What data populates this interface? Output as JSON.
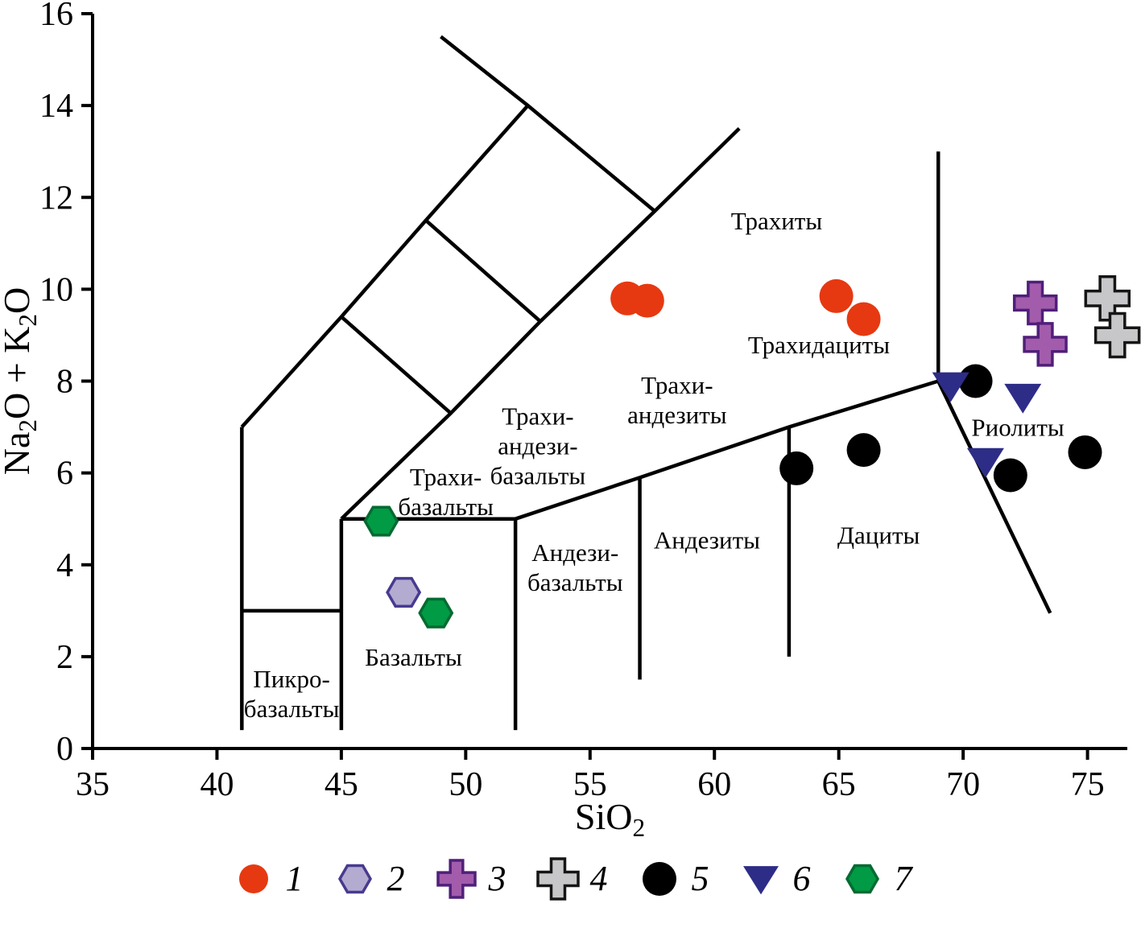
{
  "figure": {
    "background": "#ffffff"
  },
  "chart_data": {
    "type": "scatter",
    "title": "",
    "xlabel": "SiO2",
    "ylabel": "Na2O + K2O",
    "xlim": [
      35,
      76.6
    ],
    "ylim": [
      0,
      16
    ],
    "x_ticks": [
      35,
      40,
      45,
      50,
      55,
      60,
      65,
      70,
      75
    ],
    "y_ticks": [
      0,
      2,
      4,
      6,
      8,
      10,
      12,
      14,
      16
    ],
    "grid": false,
    "legend_position": "bottom",
    "boundary_lines": [
      [
        [
          41,
          0.4
        ],
        [
          41,
          7
        ]
      ],
      [
        [
          41,
          3
        ],
        [
          45,
          3
        ]
      ],
      [
        [
          45,
          0.4
        ],
        [
          45,
          5
        ]
      ],
      [
        [
          52,
          0.4
        ],
        [
          52,
          5
        ]
      ],
      [
        [
          57,
          1.5
        ],
        [
          57,
          5.9
        ]
      ],
      [
        [
          63,
          2.0
        ],
        [
          63,
          7
        ]
      ],
      [
        [
          45,
          5
        ],
        [
          52,
          5
        ]
      ],
      [
        [
          52,
          5
        ],
        [
          57,
          5.9
        ],
        [
          63,
          7
        ],
        [
          69,
          8
        ]
      ],
      [
        [
          69,
          8
        ],
        [
          69,
          13
        ]
      ],
      [
        [
          69,
          8
        ],
        [
          73.5,
          2.95
        ]
      ],
      [
        [
          41,
          7
        ],
        [
          45,
          9.4
        ],
        [
          48.4,
          11.5
        ],
        [
          52.5,
          14
        ]
      ],
      [
        [
          49.0,
          15.5
        ],
        [
          52.5,
          14
        ],
        [
          57.6,
          11.7
        ]
      ],
      [
        [
          45,
          5
        ],
        [
          49.4,
          7.3
        ],
        [
          53,
          9.3
        ],
        [
          57.6,
          11.7
        ],
        [
          61,
          13.5
        ]
      ],
      [
        [
          45,
          9.4
        ],
        [
          49.4,
          7.3
        ]
      ],
      [
        [
          48.4,
          11.5
        ],
        [
          53,
          9.3
        ]
      ]
    ],
    "field_labels": [
      {
        "lines": [
          "Пикро-",
          "базальты"
        ],
        "x": 43.0,
        "y": 1.2
      },
      {
        "lines": [
          "Базальты"
        ],
        "x": 47.9,
        "y": 2.0
      },
      {
        "lines": [
          "Трахи-",
          "базальты"
        ],
        "x": 49.2,
        "y": 5.6
      },
      {
        "lines": [
          "Трахи-",
          "андези-",
          "базальты"
        ],
        "x": 52.9,
        "y": 6.6
      },
      {
        "lines": [
          "Андези-",
          "базальты"
        ],
        "x": 54.4,
        "y": 3.95
      },
      {
        "lines": [
          "Андезиты"
        ],
        "x": 59.7,
        "y": 4.55
      },
      {
        "lines": [
          "Трахи-",
          "андезиты"
        ],
        "x": 58.5,
        "y": 7.6
      },
      {
        "lines": [
          "Трахиты"
        ],
        "x": 62.5,
        "y": 11.5
      },
      {
        "lines": [
          "Трахидациты"
        ],
        "x": 64.2,
        "y": 8.8
      },
      {
        "lines": [
          "Дациты"
        ],
        "x": 66.6,
        "y": 4.65
      },
      {
        "lines": [
          "Риолиты"
        ],
        "x": 72.2,
        "y": 7.0
      }
    ],
    "series": [
      {
        "name": "1",
        "marker": "circle",
        "size": 21,
        "fill": "#e63911",
        "stroke": "none",
        "points": [
          [
            56.5,
            9.8
          ],
          [
            57.3,
            9.75
          ],
          [
            64.9,
            9.85
          ],
          [
            66.0,
            9.35
          ]
        ]
      },
      {
        "name": "2",
        "marker": "hexagon",
        "size": 20,
        "fill": "#b4abd1",
        "stroke": "#473a8f",
        "points": [
          [
            47.5,
            3.4
          ]
        ]
      },
      {
        "name": "3",
        "marker": "cross",
        "size": 26,
        "fill": "#a25cab",
        "stroke": "#501f7a",
        "points": [
          [
            72.9,
            9.7
          ],
          [
            73.3,
            8.8
          ]
        ]
      },
      {
        "name": "4",
        "marker": "cross",
        "size": 27,
        "fill": "#c7c7c9",
        "stroke": "#151515",
        "points": [
          [
            75.8,
            9.8
          ],
          [
            76.2,
            9.0
          ]
        ]
      },
      {
        "name": "5",
        "marker": "circle",
        "size": 21,
        "fill": "#000000",
        "stroke": "none",
        "points": [
          [
            63.3,
            6.1
          ],
          [
            66.0,
            6.5
          ],
          [
            70.5,
            8.0
          ],
          [
            71.9,
            5.95
          ],
          [
            74.9,
            6.45
          ]
        ]
      },
      {
        "name": "6",
        "marker": "triangle-down",
        "size": 23,
        "fill": "#2d2d87",
        "stroke": "none",
        "points": [
          [
            69.5,
            7.9
          ],
          [
            72.4,
            7.65
          ],
          [
            70.9,
            6.25
          ]
        ]
      },
      {
        "name": "7",
        "marker": "hexagon",
        "size": 20,
        "fill": "#009b44",
        "stroke": "#056a32",
        "points": [
          [
            46.6,
            4.95
          ],
          [
            48.8,
            2.95
          ]
        ]
      }
    ],
    "legend": [
      {
        "label": "1",
        "marker": "circle",
        "size": 18,
        "fill": "#e63911",
        "stroke": "none"
      },
      {
        "label": "2",
        "marker": "hexagon",
        "size": 19,
        "fill": "#b4abd1",
        "stroke": "#473a8f"
      },
      {
        "label": "3",
        "marker": "cross",
        "size": 23,
        "fill": "#a25cab",
        "stroke": "#501f7a"
      },
      {
        "label": "4",
        "marker": "cross",
        "size": 25,
        "fill": "#c7c7c9",
        "stroke": "#151515"
      },
      {
        "label": "5",
        "marker": "circle",
        "size": 21,
        "fill": "#000000",
        "stroke": "none"
      },
      {
        "label": "6",
        "marker": "triangle-down",
        "size": 22,
        "fill": "#2d2d87",
        "stroke": "none"
      },
      {
        "label": "7",
        "marker": "hexagon",
        "size": 19,
        "fill": "#009b44",
        "stroke": "#056a32"
      }
    ]
  }
}
